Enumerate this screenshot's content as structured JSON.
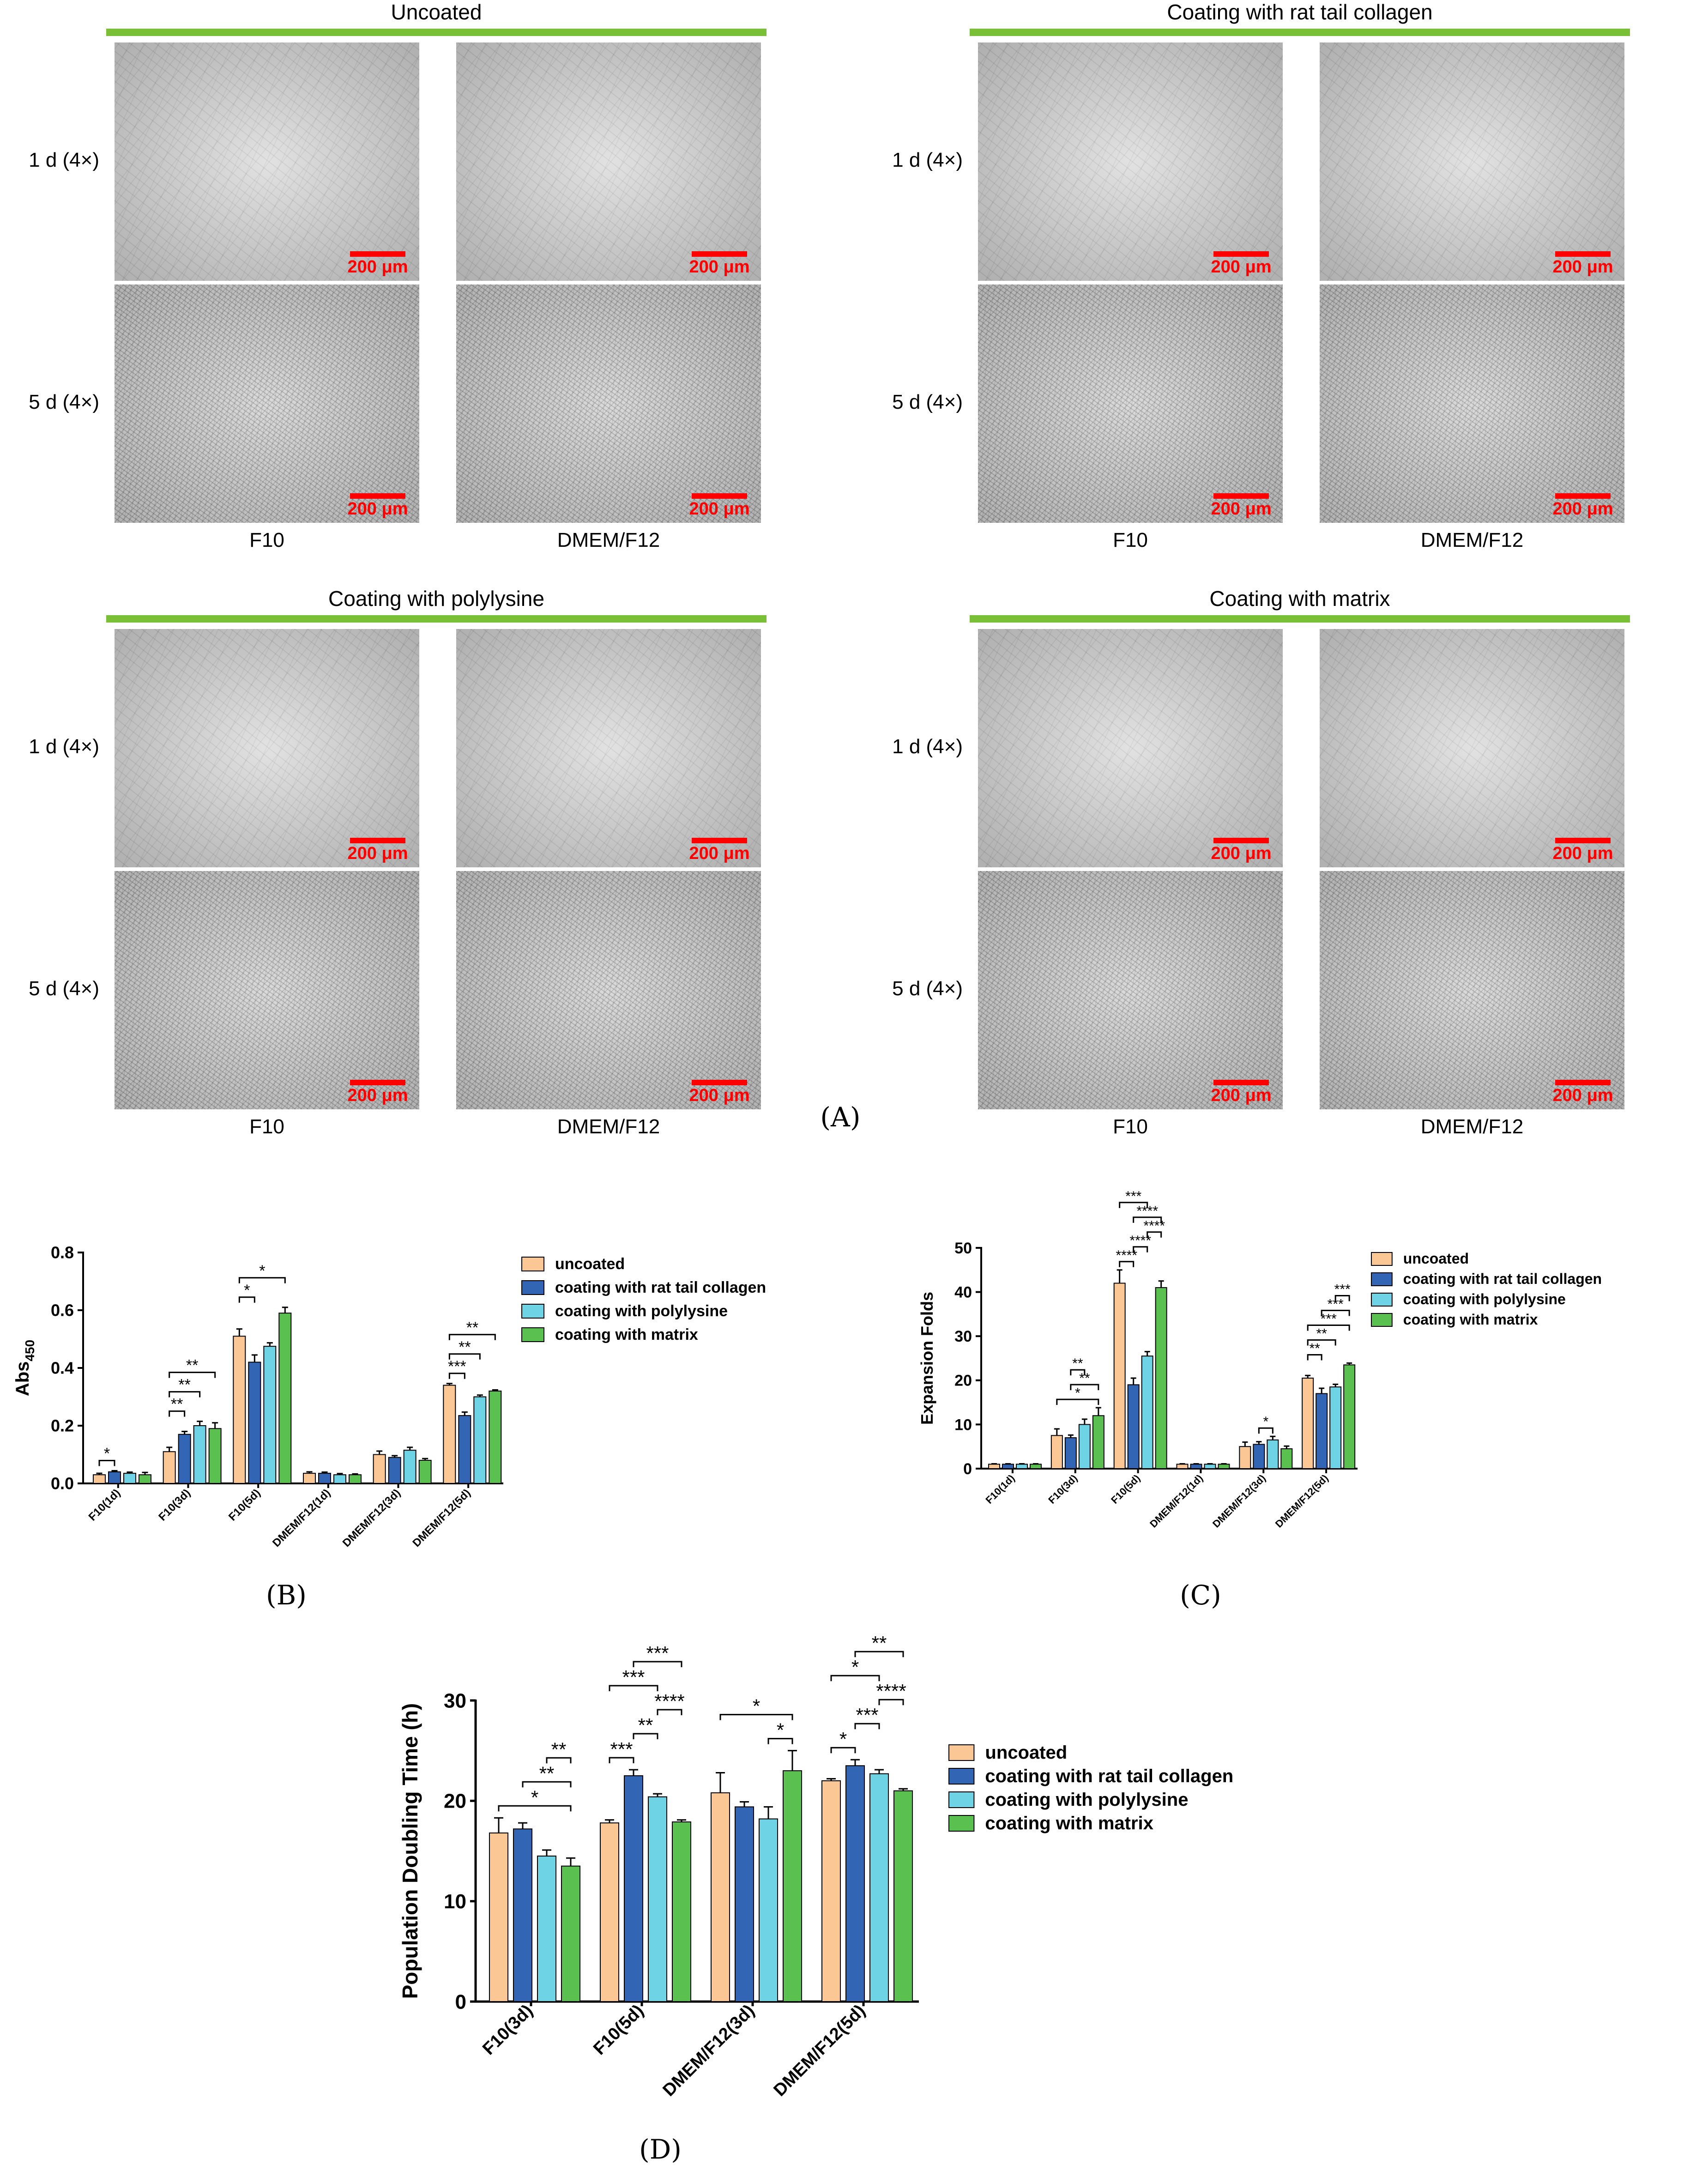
{
  "panel_A": {
    "quadrants": [
      {
        "title": "Uncoated",
        "rows": [
          "1 d (4×)",
          "5 d (4×)"
        ],
        "columns": [
          "F10",
          "DMEM/F12"
        ],
        "scale_label": "200 μm"
      },
      {
        "title": "Coating with rat tail collagen",
        "rows": [
          "1 d (4×)",
          "5 d (4×)"
        ],
        "columns": [
          "F10",
          "DMEM/F12"
        ],
        "scale_label": "200 μm"
      },
      {
        "title": "Coating with polylysine",
        "rows": [
          "1 d (4×)",
          "5 d (4×)"
        ],
        "columns": [
          "F10",
          "DMEM/F12"
        ],
        "scale_label": "200 μm"
      },
      {
        "title": "Coating with matrix",
        "rows": [
          "1 d (4×)",
          "5 d (4×)"
        ],
        "columns": [
          "F10",
          "DMEM/F12"
        ],
        "scale_label": "200 μm"
      }
    ],
    "label": "(A)"
  },
  "colors": {
    "uncoated": "#fbc795",
    "rat_tail_collagen": "#3266b5",
    "polylysine": "#6fd3e6",
    "matrix": "#5ac04f",
    "title_bar": "#7ac036",
    "scale_bar": "#ff0000"
  },
  "labels": {
    "B": "(B)",
    "C": "(C)",
    "D": "(D)"
  },
  "chart_data": [
    {
      "id": "B",
      "type": "bar",
      "ylabel": "Abs",
      "ylabel_sub": "450",
      "ylim": [
        0,
        0.8
      ],
      "yticks": [
        "0.0",
        "0.2",
        "0.4",
        "0.6",
        "0.8"
      ],
      "categories": [
        "F10(1d)",
        "F10(3d)",
        "F10(5d)",
        "DMEM/F12(1d)",
        "DMEM/F12(3d)",
        "DMEM/F12(5d)"
      ],
      "series": [
        {
          "name": "uncoated",
          "values": [
            0.03,
            0.11,
            0.51,
            0.035,
            0.1,
            0.34
          ],
          "errors": [
            0.005,
            0.015,
            0.025,
            0.005,
            0.012,
            0.006
          ]
        },
        {
          "name": "coating with rat tail collagen",
          "values": [
            0.04,
            0.17,
            0.42,
            0.035,
            0.09,
            0.235
          ],
          "errors": [
            0.004,
            0.01,
            0.025,
            0.004,
            0.006,
            0.012
          ]
        },
        {
          "name": "coating with polylysine",
          "values": [
            0.035,
            0.2,
            0.475,
            0.03,
            0.115,
            0.3
          ],
          "errors": [
            0.004,
            0.015,
            0.012,
            0.004,
            0.01,
            0.006
          ]
        },
        {
          "name": "coating with matrix",
          "values": [
            0.03,
            0.19,
            0.59,
            0.03,
            0.08,
            0.32
          ],
          "errors": [
            0.008,
            0.02,
            0.02,
            0.003,
            0.006,
            0.004
          ]
        }
      ],
      "significance": [
        {
          "group": 0,
          "from": 0,
          "to": 1,
          "label": "*"
        },
        {
          "group": 1,
          "from": 0,
          "to": 1,
          "label": "**"
        },
        {
          "group": 1,
          "from": 0,
          "to": 2,
          "label": "**"
        },
        {
          "group": 1,
          "from": 0,
          "to": 3,
          "label": "**"
        },
        {
          "group": 2,
          "from": 0,
          "to": 1,
          "label": "*"
        },
        {
          "group": 2,
          "from": 0,
          "to": 3,
          "label": "*"
        },
        {
          "group": 5,
          "from": 0,
          "to": 1,
          "label": "***"
        },
        {
          "group": 5,
          "from": 0,
          "to": 2,
          "label": "**"
        },
        {
          "group": 5,
          "from": 0,
          "to": 3,
          "label": "**"
        }
      ],
      "legend": [
        "uncoated",
        "coating with rat tail collagen",
        "coating with polylysine",
        "coating with matrix"
      ]
    },
    {
      "id": "C",
      "type": "bar",
      "ylabel": "Expansion Folds",
      "ylim": [
        0,
        50
      ],
      "yticks": [
        "0",
        "10",
        "20",
        "30",
        "40",
        "50"
      ],
      "categories": [
        "F10(1d)",
        "F10(3d)",
        "F10(5d)",
        "DMEM/F12(1d)",
        "DMEM/F12(3d)",
        "DMEM/F12(5d)"
      ],
      "series": [
        {
          "name": "uncoated",
          "values": [
            1,
            7.5,
            42,
            1,
            5,
            20.5
          ],
          "errors": [
            0.1,
            1.5,
            3,
            0.1,
            1,
            0.6
          ]
        },
        {
          "name": "coating with rat tail collagen",
          "values": [
            1,
            7,
            19,
            1,
            5.5,
            17
          ],
          "errors": [
            0.1,
            0.6,
            1.5,
            0.1,
            0.6,
            1.2
          ]
        },
        {
          "name": "coating with polylysine",
          "values": [
            1,
            10,
            25.5,
            1,
            6.5,
            18.5
          ],
          "errors": [
            0.1,
            1.2,
            1,
            0.1,
            0.8,
            0.6
          ]
        },
        {
          "name": "coating with matrix",
          "values": [
            1,
            12,
            41,
            1,
            4.5,
            23.5
          ],
          "errors": [
            0.1,
            1.8,
            1.5,
            0.1,
            0.6,
            0.4
          ]
        }
      ],
      "significance": [
        {
          "group": 1,
          "from": 0,
          "to": 3,
          "label": "*"
        },
        {
          "group": 1,
          "from": 1,
          "to": 3,
          "label": "**"
        },
        {
          "group": 1,
          "from": 1,
          "to": 2,
          "label": "**"
        },
        {
          "group": 2,
          "from": 0,
          "to": 1,
          "label": "****"
        },
        {
          "group": 2,
          "from": 1,
          "to": 2,
          "label": "****"
        },
        {
          "group": 2,
          "from": 2,
          "to": 3,
          "label": "****"
        },
        {
          "group": 2,
          "from": 1,
          "to": 3,
          "label": "****"
        },
        {
          "group": 2,
          "from": 0,
          "to": 2,
          "label": "***"
        },
        {
          "group": 4,
          "from": 1,
          "to": 2,
          "label": "*"
        },
        {
          "group": 5,
          "from": 0,
          "to": 1,
          "label": "**"
        },
        {
          "group": 5,
          "from": 0,
          "to": 2,
          "label": "**"
        },
        {
          "group": 5,
          "from": 0,
          "to": 3,
          "label": "***"
        },
        {
          "group": 5,
          "from": 1,
          "to": 3,
          "label": "***"
        },
        {
          "group": 5,
          "from": 2,
          "to": 3,
          "label": "***"
        }
      ],
      "legend": [
        "uncoated",
        "coating with rat tail collagen",
        "coating with polylysine",
        "coating with matrix"
      ]
    },
    {
      "id": "D",
      "type": "bar",
      "ylabel": "Population Doubling Time (h)",
      "ylim": [
        0,
        30
      ],
      "yticks": [
        "0",
        "10",
        "20",
        "30"
      ],
      "categories": [
        "F10(3d)",
        "F10(5d)",
        "DMEM/F12(3d)",
        "DMEM/F12(5d)"
      ],
      "series": [
        {
          "name": "uncoated",
          "values": [
            16.8,
            17.8,
            20.8,
            22.0
          ],
          "errors": [
            1.5,
            0.3,
            2.0,
            0.2
          ]
        },
        {
          "name": "coating with rat tail collagen",
          "values": [
            17.2,
            22.5,
            19.4,
            23.5
          ],
          "errors": [
            0.6,
            0.6,
            0.5,
            0.6
          ]
        },
        {
          "name": "coating with polylysine",
          "values": [
            14.5,
            20.4,
            18.2,
            22.7
          ],
          "errors": [
            0.6,
            0.3,
            1.2,
            0.4
          ]
        },
        {
          "name": "coating with matrix",
          "values": [
            13.5,
            17.9,
            23.0,
            21.0
          ],
          "errors": [
            0.8,
            0.2,
            2.0,
            0.2
          ]
        }
      ],
      "significance": [
        {
          "group": 0,
          "from": 0,
          "to": 3,
          "label": "*"
        },
        {
          "group": 0,
          "from": 1,
          "to": 3,
          "label": "**"
        },
        {
          "group": 0,
          "from": 2,
          "to": 3,
          "label": "**"
        },
        {
          "group": 1,
          "from": 0,
          "to": 1,
          "label": "***"
        },
        {
          "group": 1,
          "from": 1,
          "to": 2,
          "label": "**"
        },
        {
          "group": 1,
          "from": 2,
          "to": 3,
          "label": "****"
        },
        {
          "group": 1,
          "from": 0,
          "to": 2,
          "label": "***"
        },
        {
          "group": 1,
          "from": 1,
          "to": 3,
          "label": "***"
        },
        {
          "group": 2,
          "from": 2,
          "to": 3,
          "label": "*"
        },
        {
          "group": 2,
          "from": 0,
          "to": 3,
          "label": "*"
        },
        {
          "group": 3,
          "from": 0,
          "to": 1,
          "label": "*"
        },
        {
          "group": 3,
          "from": 1,
          "to": 2,
          "label": "***"
        },
        {
          "group": 3,
          "from": 2,
          "to": 3,
          "label": "****"
        },
        {
          "group": 3,
          "from": 0,
          "to": 2,
          "label": "*"
        },
        {
          "group": 3,
          "from": 1,
          "to": 3,
          "label": "**"
        }
      ],
      "legend": [
        "uncoated",
        "coating with rat tail collagen",
        "coating with polylysine",
        "coating with matrix"
      ]
    }
  ]
}
